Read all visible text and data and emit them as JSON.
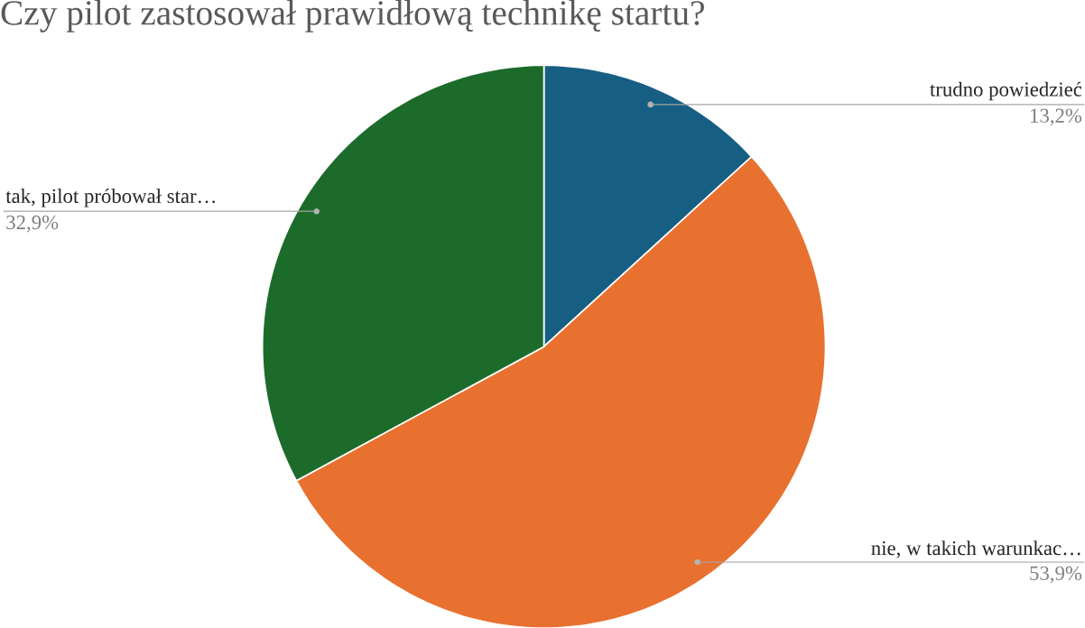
{
  "chart_data": {
    "type": "pie",
    "title": "Czy pilot zastosował prawidłową technikę startu?",
    "categories": [
      "trudno powiedzieć",
      "nie, w takich warunkac…",
      "tak, pilot próbował star…"
    ],
    "values": [
      13.2,
      53.9,
      32.9
    ],
    "value_labels": [
      "13,2%",
      "53,9%",
      "32,9%"
    ],
    "colors": [
      "#175e83",
      "#e87130",
      "#1d6b2b"
    ]
  }
}
